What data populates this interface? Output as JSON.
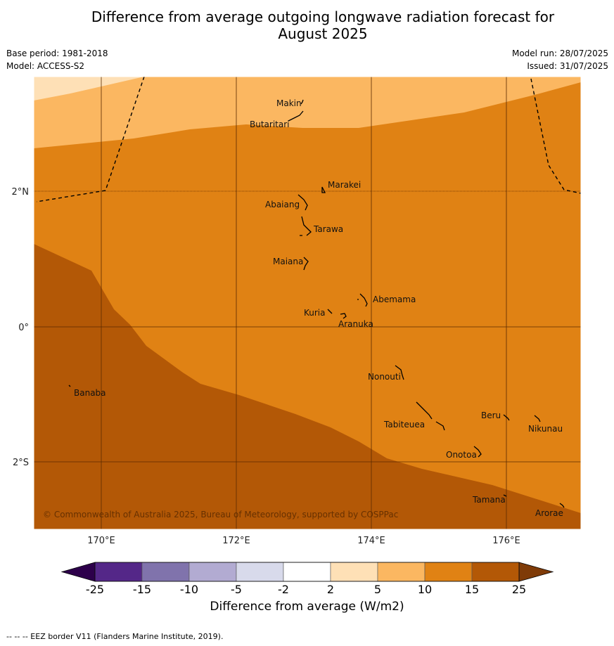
{
  "title_line1": "Difference from average outgoing longwave radiation forecast for",
  "title_line2": "August 2025",
  "base_period": "Base period: 1981-2018",
  "model": "Model: ACCESS-S2",
  "model_run": "Model run: 28/07/2025",
  "issued": "Issued: 31/07/2025",
  "copyright": "© Commonwealth of Australia 2025, Bureau of Meteorology, supported by COSPPac",
  "footnote": "--  --  -- EEZ border V11 (Flanders Marine Institute, 2019).",
  "map": {
    "lon_range": [
      169.0,
      177.1
    ],
    "lat_range": [
      -3.0,
      3.7
    ],
    "lon_ticks": [
      {
        "value": 170,
        "label": "170°E"
      },
      {
        "value": 172,
        "label": "172°E"
      },
      {
        "value": 174,
        "label": "174°E"
      },
      {
        "value": 176,
        "label": "176°E"
      }
    ],
    "lat_ticks": [
      {
        "value": 2,
        "label": "2°N"
      },
      {
        "value": 0,
        "label": "0°"
      },
      {
        "value": -2,
        "label": "2°S"
      }
    ],
    "islands": [
      {
        "name": "Makin",
        "lon": 173.0,
        "lat": 3.35
      },
      {
        "name": "Butaritari",
        "lon": 172.8,
        "lat": 3.1
      },
      {
        "name": "Marakei",
        "lon": 173.35,
        "lat": 2.0
      },
      {
        "name": "Abaiang",
        "lon": 172.95,
        "lat": 1.8
      },
      {
        "name": "Tarawa",
        "lon": 173.05,
        "lat": 1.4
      },
      {
        "name": "Maiana",
        "lon": 173.0,
        "lat": 0.95
      },
      {
        "name": "Abemama",
        "lon": 173.9,
        "lat": 0.4
      },
      {
        "name": "Kuria",
        "lon": 173.4,
        "lat": 0.23
      },
      {
        "name": "Aranuka",
        "lon": 173.6,
        "lat": 0.17
      },
      {
        "name": "Banaba",
        "lon": 169.55,
        "lat": -0.87
      },
      {
        "name": "Nonouti",
        "lon": 174.4,
        "lat": -0.65
      },
      {
        "name": "Tabiteuea",
        "lon": 174.8,
        "lat": -1.3
      },
      {
        "name": "Beru",
        "lon": 176.0,
        "lat": -1.33
      },
      {
        "name": "Nikunau",
        "lon": 176.45,
        "lat": -1.35
      },
      {
        "name": "Onotoa",
        "lon": 175.55,
        "lat": -1.8
      },
      {
        "name": "Tamana",
        "lon": 175.98,
        "lat": -2.5
      },
      {
        "name": "Arorae",
        "lon": 176.8,
        "lat": -2.65
      }
    ],
    "colors": {
      "5-10": "#fbb761",
      "10-15": "#e08214",
      "15-25": "#b35806",
      "2-5": "#fee0b6"
    }
  },
  "colorbar": {
    "title": "Difference from average (W/m2)",
    "ticks": [
      "-25",
      "-15",
      "-10",
      "-5",
      "-2",
      "2",
      "5",
      "10",
      "15",
      "25"
    ],
    "colors": [
      "#542788",
      "#8073ac",
      "#b2abd2",
      "#d8daeb",
      "#ffffff",
      "#fee0b6",
      "#fbb761",
      "#e08214",
      "#b35806"
    ],
    "under_color": "#2d004b",
    "over_color": "#7f3b08"
  }
}
